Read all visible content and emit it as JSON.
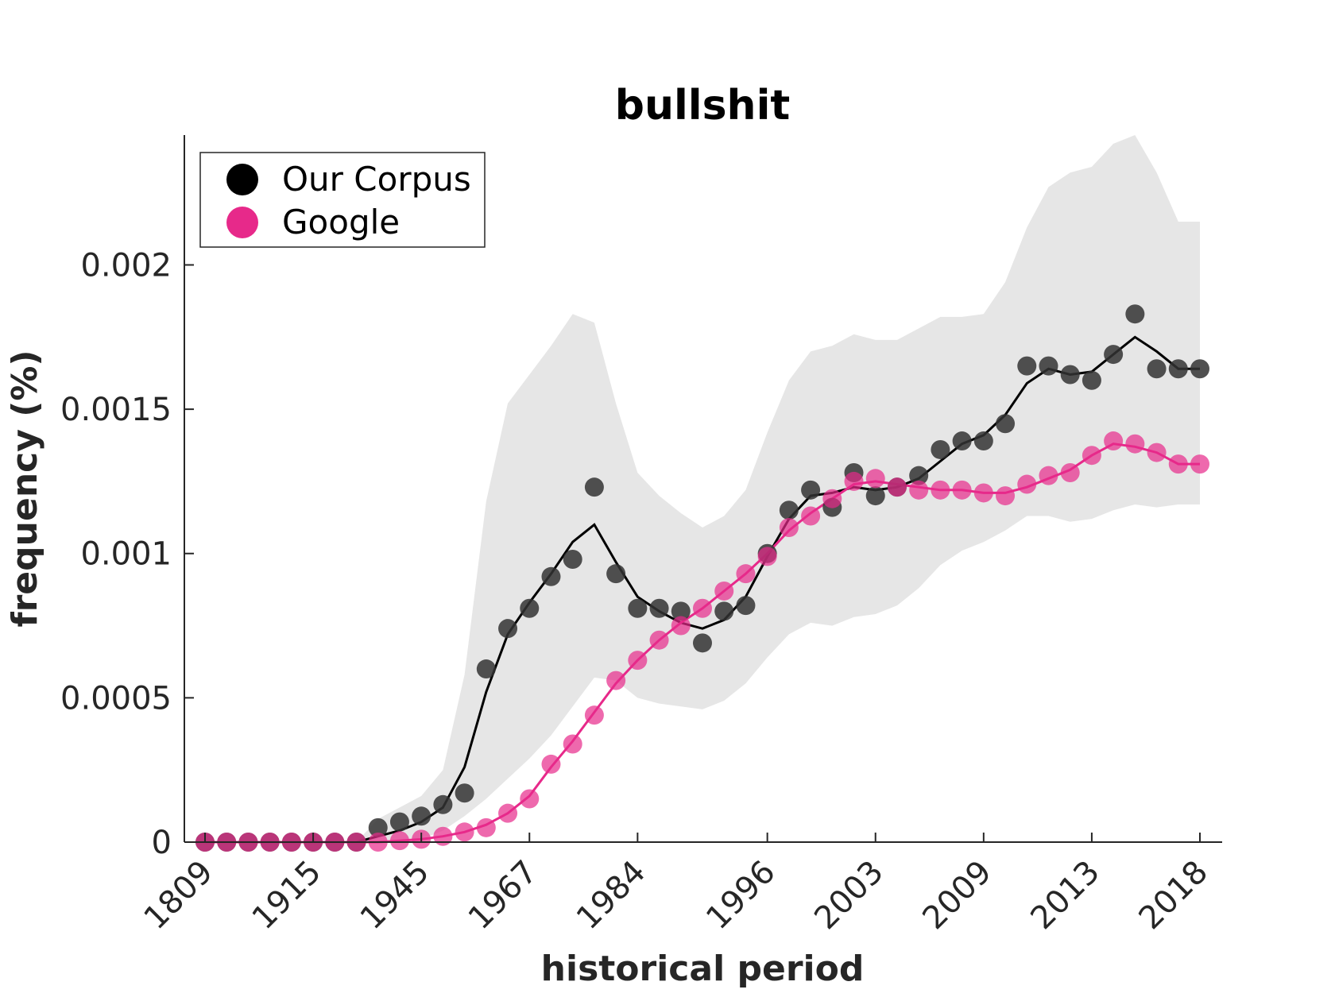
{
  "chart_data": {
    "type": "line",
    "title": "bullshit",
    "xlabel": "historical period",
    "ylabel": "frequency (%)",
    "x_tick_labels": [
      "1809",
      "1915",
      "1945",
      "1967",
      "1984",
      "1996",
      "2003",
      "2009",
      "2013",
      "2018"
    ],
    "y_ticks": [
      0,
      0.0005,
      0.001,
      0.0015,
      0.002
    ],
    "y_tick_labels": [
      "0",
      "0.0005",
      "0.001",
      "0.0015",
      "0.002"
    ],
    "ylim": [
      0,
      0.00245
    ],
    "n_points": 47,
    "legend": {
      "placement": "top-left",
      "entries": [
        "Our Corpus",
        "Google"
      ]
    },
    "colors": {
      "corpus": "#000000",
      "google": "#e7298a",
      "band": "#e6e6e6"
    },
    "series": [
      {
        "name": "Our Corpus",
        "points": [
          0,
          0,
          0,
          0,
          0,
          0,
          0,
          0,
          5e-05,
          7e-05,
          9e-05,
          0.00013,
          0.00017,
          0.0006,
          0.00074,
          0.00081,
          0.00092,
          0.00098,
          0.00123,
          0.00093,
          0.00081,
          0.00081,
          0.0008,
          0.00069,
          0.0008,
          0.00082,
          0.001,
          0.00115,
          0.00122,
          0.00116,
          0.00128,
          0.0012,
          0.00123,
          0.00127,
          0.00136,
          0.00139,
          0.00139,
          0.00145,
          0.00165,
          0.00165,
          0.00162,
          0.0016,
          0.00169,
          0.00183,
          0.00164,
          0.00164,
          0.00164
        ],
        "smoothed": [
          0,
          0,
          0,
          0,
          0,
          0,
          0,
          0,
          2e-05,
          4e-05,
          7e-05,
          0.00012,
          0.00026,
          0.00052,
          0.00072,
          0.00083,
          0.00093,
          0.00104,
          0.0011,
          0.00097,
          0.00085,
          0.0008,
          0.00076,
          0.00074,
          0.00077,
          0.00085,
          0.00099,
          0.00112,
          0.0012,
          0.00121,
          0.00123,
          0.00122,
          0.00123,
          0.00126,
          0.00132,
          0.00138,
          0.00141,
          0.00148,
          0.00159,
          0.00164,
          0.00162,
          0.00163,
          0.00169,
          0.00175,
          0.0017,
          0.00164,
          0.00164
        ],
        "band_upper": [
          0,
          0,
          0,
          0,
          0,
          0,
          0,
          0,
          8e-05,
          0.00012,
          0.00016,
          0.00025,
          0.00058,
          0.00118,
          0.00152,
          0.00162,
          0.00172,
          0.00183,
          0.0018,
          0.00152,
          0.00128,
          0.0012,
          0.00114,
          0.00109,
          0.00113,
          0.00122,
          0.00142,
          0.0016,
          0.0017,
          0.00172,
          0.00176,
          0.00174,
          0.00174,
          0.00178,
          0.00182,
          0.00182,
          0.00183,
          0.00194,
          0.00213,
          0.00227,
          0.00232,
          0.00234,
          0.00242,
          0.00245,
          0.00232,
          0.00215,
          0.00215
        ],
        "band_lower": [
          0,
          0,
          0,
          0,
          0,
          0,
          0,
          0,
          0,
          0,
          1e-05,
          4e-05,
          9e-05,
          0.00015,
          0.00022,
          0.00029,
          0.00037,
          0.00047,
          0.00057,
          0.00056,
          0.0005,
          0.00048,
          0.00047,
          0.00046,
          0.00049,
          0.00055,
          0.00064,
          0.00072,
          0.00076,
          0.00075,
          0.00078,
          0.00079,
          0.00082,
          0.00088,
          0.00096,
          0.00101,
          0.00104,
          0.00108,
          0.00113,
          0.00113,
          0.00111,
          0.00112,
          0.00115,
          0.00117,
          0.00116,
          0.00117,
          0.00117
        ]
      },
      {
        "name": "Google",
        "points": [
          0,
          0,
          0,
          0,
          0,
          0,
          0,
          0,
          0,
          5e-06,
          1e-05,
          2e-05,
          3.5e-05,
          5e-05,
          0.0001,
          0.00015,
          0.00027,
          0.00034,
          0.00044,
          0.00056,
          0.00063,
          0.0007,
          0.00075,
          0.00081,
          0.00087,
          0.00093,
          0.00099,
          0.00109,
          0.00113,
          0.00119,
          0.00125,
          0.00126,
          0.00123,
          0.00122,
          0.00122,
          0.00122,
          0.00121,
          0.0012,
          0.00124,
          0.00127,
          0.00128,
          0.00134,
          0.00139,
          0.00138,
          0.00135,
          0.00131,
          0.00131
        ],
        "smoothed": [
          0,
          0,
          0,
          0,
          0,
          0,
          0,
          0,
          0,
          5e-06,
          1e-05,
          2e-05,
          3.5e-05,
          6e-05,
          0.0001,
          0.00016,
          0.00026,
          0.00035,
          0.00045,
          0.00055,
          0.00063,
          0.0007,
          0.00076,
          0.00081,
          0.00087,
          0.00093,
          0.001,
          0.00108,
          0.00114,
          0.00119,
          0.00124,
          0.00125,
          0.00124,
          0.00123,
          0.00122,
          0.00122,
          0.00121,
          0.00121,
          0.00123,
          0.00126,
          0.00129,
          0.00134,
          0.00138,
          0.00137,
          0.00135,
          0.00131,
          0.00131
        ]
      }
    ]
  }
}
